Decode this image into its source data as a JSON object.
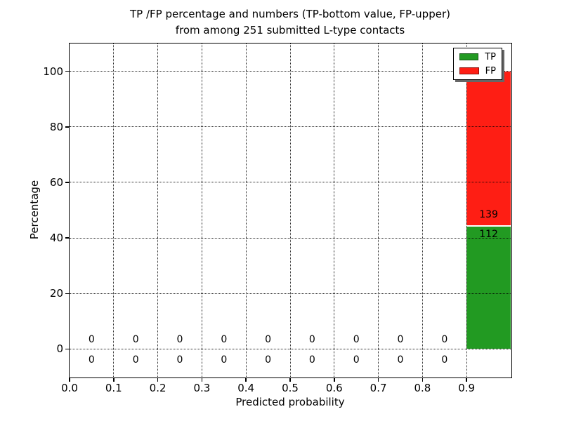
{
  "chart_data": {
    "type": "bar",
    "stacked": true,
    "title_line1": "TP /FP percentage and numbers (TP-bottom value, FP-upper)",
    "title_line2": "from among 251 submitted L-type contacts",
    "xlabel": "Predicted probability",
    "ylabel": "Percentage",
    "total_contacts": 251,
    "xlim": [
      0.0,
      1.0
    ],
    "ylim": [
      -10,
      110
    ],
    "x_ticks": [
      {
        "v": 0.0,
        "label": "0.0"
      },
      {
        "v": 0.1,
        "label": "0.1"
      },
      {
        "v": 0.2,
        "label": "0.2"
      },
      {
        "v": 0.3,
        "label": "0.3"
      },
      {
        "v": 0.4,
        "label": "0.4"
      },
      {
        "v": 0.5,
        "label": "0.5"
      },
      {
        "v": 0.6,
        "label": "0.6"
      },
      {
        "v": 0.7,
        "label": "0.7"
      },
      {
        "v": 0.8,
        "label": "0.8"
      },
      {
        "v": 0.9,
        "label": "0.9"
      }
    ],
    "y_ticks": [
      {
        "v": 0,
        "label": "0"
      },
      {
        "v": 20,
        "label": "20"
      },
      {
        "v": 40,
        "label": "40"
      },
      {
        "v": 60,
        "label": "60"
      },
      {
        "v": 80,
        "label": "80"
      },
      {
        "v": 100,
        "label": "100"
      }
    ],
    "grid_style": "dotted",
    "grid_on": true,
    "colors": {
      "tp": "#229a22",
      "fp": "#fe1e14",
      "divider": "#ffffff",
      "grid": "#000000",
      "text": "#000000"
    },
    "legend": {
      "position": "upper right",
      "shadow": true,
      "entries": [
        {
          "label": "TP",
          "color_key": "tp"
        },
        {
          "label": "FP",
          "color_key": "fp"
        }
      ]
    },
    "zero_label": "0",
    "bins": [
      {
        "x0": 0.0,
        "x1": 0.1,
        "tp": 0,
        "fp": 0
      },
      {
        "x0": 0.1,
        "x1": 0.2,
        "tp": 0,
        "fp": 0
      },
      {
        "x0": 0.2,
        "x1": 0.3,
        "tp": 0,
        "fp": 0
      },
      {
        "x0": 0.3,
        "x1": 0.4,
        "tp": 0,
        "fp": 0
      },
      {
        "x0": 0.4,
        "x1": 0.5,
        "tp": 0,
        "fp": 0
      },
      {
        "x0": 0.5,
        "x1": 0.6,
        "tp": 0,
        "fp": 0
      },
      {
        "x0": 0.6,
        "x1": 0.7,
        "tp": 0,
        "fp": 0
      },
      {
        "x0": 0.7,
        "x1": 0.8,
        "tp": 0,
        "fp": 0
      },
      {
        "x0": 0.8,
        "x1": 0.9,
        "tp": 0,
        "fp": 0
      },
      {
        "x0": 0.9,
        "x1": 1.0,
        "tp": 112,
        "fp": 139,
        "tp_pct": 44.62,
        "fp_pct": 55.38
      }
    ]
  }
}
